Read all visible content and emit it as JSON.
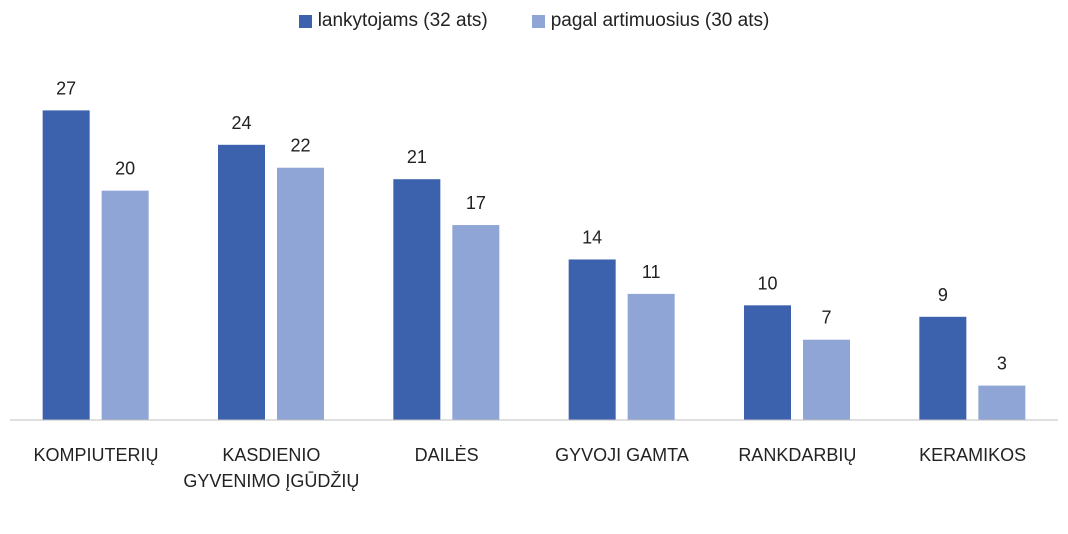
{
  "chart_data": {
    "type": "bar",
    "categories": [
      "KOMPIUTERIŲ",
      "KASDIENIO GYVENIMO ĮGŪDŽIŲ",
      "DAILĖS",
      "GYVOJI GAMTA",
      "RANKDARBIŲ",
      "KERAMIKOS"
    ],
    "series": [
      {
        "name": "lankytojams (32 ats)",
        "color": "#3c62ae",
        "values": [
          27,
          24,
          21,
          14,
          10,
          9
        ]
      },
      {
        "name": "pagal artimuosius (30 ats)",
        "color": "#8fa5d6",
        "values": [
          20,
          22,
          17,
          11,
          7,
          3
        ]
      }
    ],
    "ylim": [
      0,
      30
    ],
    "legend": "top"
  }
}
